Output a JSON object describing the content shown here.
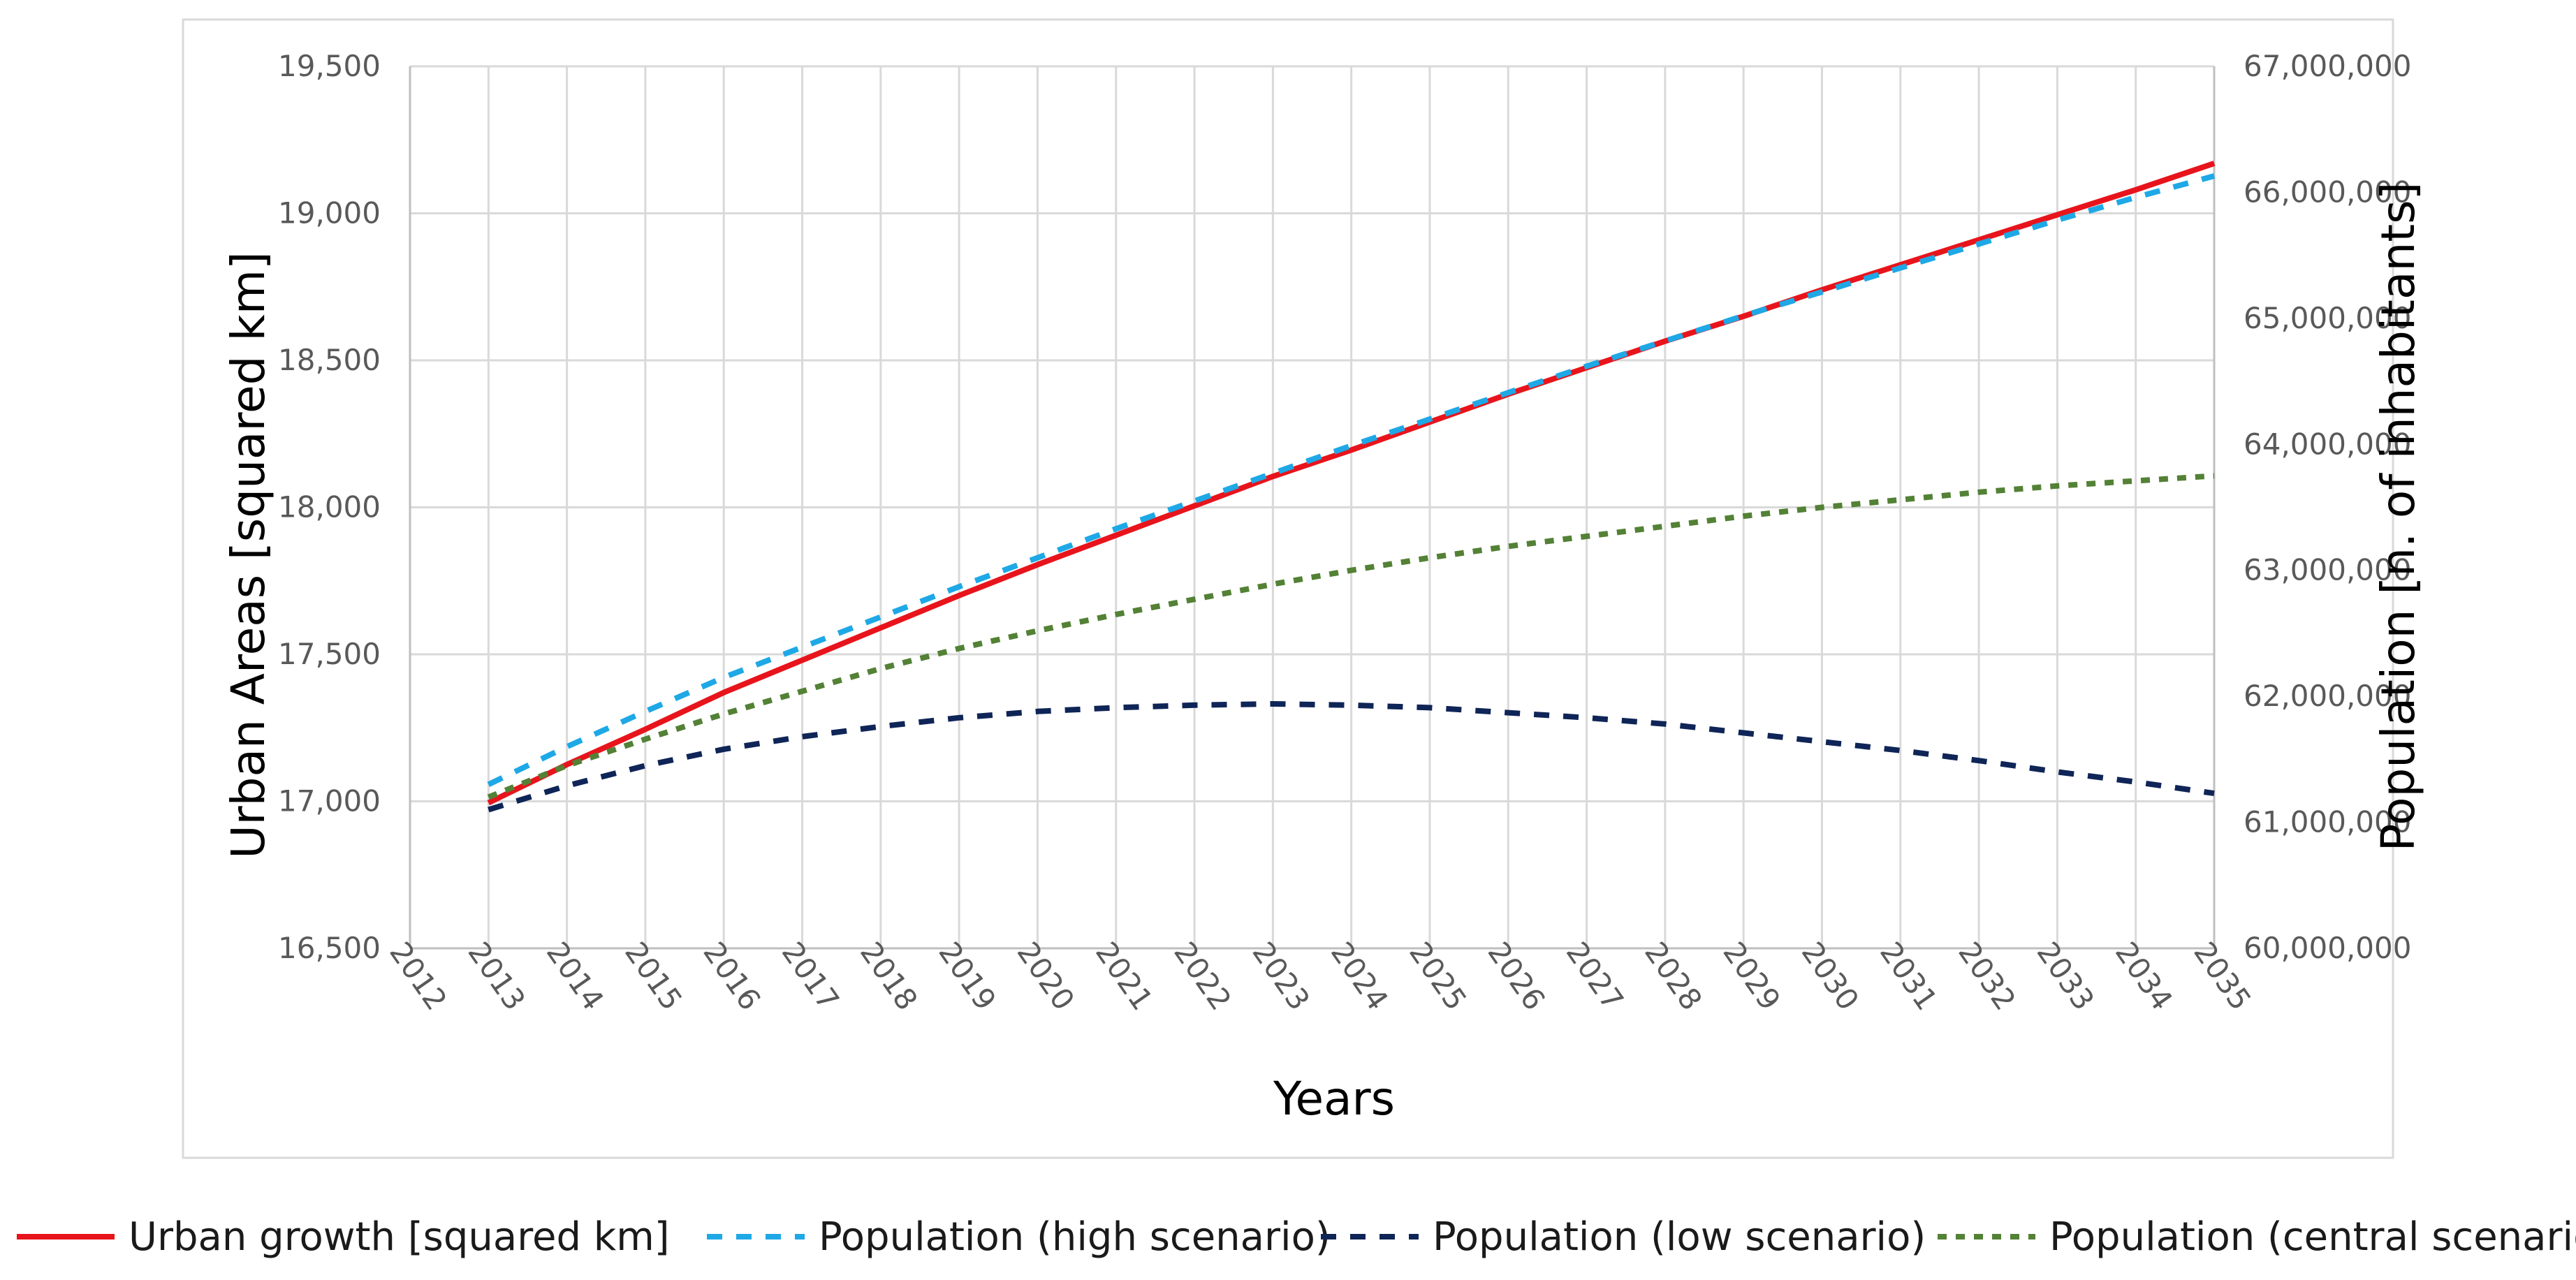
{
  "chart_data": {
    "type": "line",
    "title": "",
    "xlabel": "Years",
    "ylabel": "Urban Areas [squared km]",
    "y2label": "Population [n. of inhabitants]",
    "categories": [
      "2012",
      "2013",
      "2014",
      "2015",
      "2016",
      "2017",
      "2018",
      "2019",
      "2020",
      "2021",
      "2022",
      "2023",
      "2024",
      "2025",
      "2026",
      "2027",
      "2028",
      "2029",
      "2030",
      "2031",
      "2032",
      "2033",
      "2034",
      "2035"
    ],
    "ylim": [
      16500,
      19500
    ],
    "y2lim": [
      60000000,
      67000000
    ],
    "yticks": [
      "16,500",
      "17,000",
      "17,500",
      "18,000",
      "18,500",
      "19,000",
      "19,500"
    ],
    "y2ticks": [
      "60,000,000",
      "61,000,000",
      "62,000,000",
      "63,000,000",
      "64,000,000",
      "65,000,000",
      "66,000,000",
      "67,000,000"
    ],
    "grid": true,
    "legend_position": "bottom",
    "series": [
      {
        "name": "Urban growth [squared km]",
        "axis": "left",
        "color": "#e8141c",
        "style": "solid",
        "x": [
          "2013",
          "2014",
          "2015",
          "2016",
          "2017",
          "2018",
          "2019",
          "2020",
          "2021",
          "2022",
          "2023",
          "2024",
          "2025",
          "2026",
          "2027",
          "2028",
          "2029",
          "2030",
          "2031",
          "2032",
          "2033",
          "2034",
          "2035"
        ],
        "values": [
          16995,
          17125,
          17245,
          17370,
          17480,
          17590,
          17700,
          17805,
          17905,
          18005,
          18105,
          18195,
          18290,
          18385,
          18475,
          18565,
          18650,
          18740,
          18825,
          18910,
          18995,
          19080,
          19170
        ]
      },
      {
        "name": "Population (high scenario)",
        "axis": "right",
        "color": "#1ea8e6",
        "style": "dashed",
        "x": [
          "2013",
          "2014",
          "2015",
          "2016",
          "2017",
          "2018",
          "2019",
          "2020",
          "2021",
          "2022",
          "2023",
          "2024",
          "2025",
          "2026",
          "2027",
          "2028",
          "2029",
          "2030",
          "2031",
          "2032",
          "2033",
          "2034",
          "2035"
        ],
        "values": [
          61300000,
          61600000,
          61880000,
          62150000,
          62390000,
          62630000,
          62870000,
          63100000,
          63330000,
          63550000,
          63770000,
          63990000,
          64200000,
          64410000,
          64620000,
          64820000,
          65020000,
          65210000,
          65400000,
          65590000,
          65780000,
          65960000,
          66130000
        ]
      },
      {
        "name": "Population (low scenario)",
        "axis": "right",
        "color": "#0f2557",
        "style": "dashed",
        "x": [
          "2013",
          "2014",
          "2015",
          "2016",
          "2017",
          "2018",
          "2019",
          "2020",
          "2021",
          "2022",
          "2023",
          "2024",
          "2025",
          "2026",
          "2027",
          "2028",
          "2029",
          "2030",
          "2031",
          "2032",
          "2033",
          "2034",
          "2035"
        ],
        "values": [
          61100000,
          61290000,
          61450000,
          61580000,
          61680000,
          61760000,
          61830000,
          61880000,
          61910000,
          61930000,
          61940000,
          61930000,
          61910000,
          61870000,
          61830000,
          61780000,
          61710000,
          61640000,
          61570000,
          61490000,
          61400000,
          61320000,
          61230000
        ]
      },
      {
        "name": "Population (central scenario)",
        "axis": "right",
        "color": "#538135",
        "style": "dotted",
        "x": [
          "2013",
          "2014",
          "2015",
          "2016",
          "2017",
          "2018",
          "2019",
          "2020",
          "2021",
          "2022",
          "2023",
          "2024",
          "2025",
          "2026",
          "2027",
          "2028",
          "2029",
          "2030",
          "2031",
          "2032",
          "2033",
          "2034",
          "2035"
        ],
        "values": [
          61200000,
          61450000,
          61660000,
          61860000,
          62040000,
          62220000,
          62380000,
          62520000,
          62650000,
          62770000,
          62890000,
          63000000,
          63100000,
          63190000,
          63270000,
          63350000,
          63430000,
          63500000,
          63560000,
          63620000,
          63670000,
          63710000,
          63750000
        ]
      }
    ]
  }
}
